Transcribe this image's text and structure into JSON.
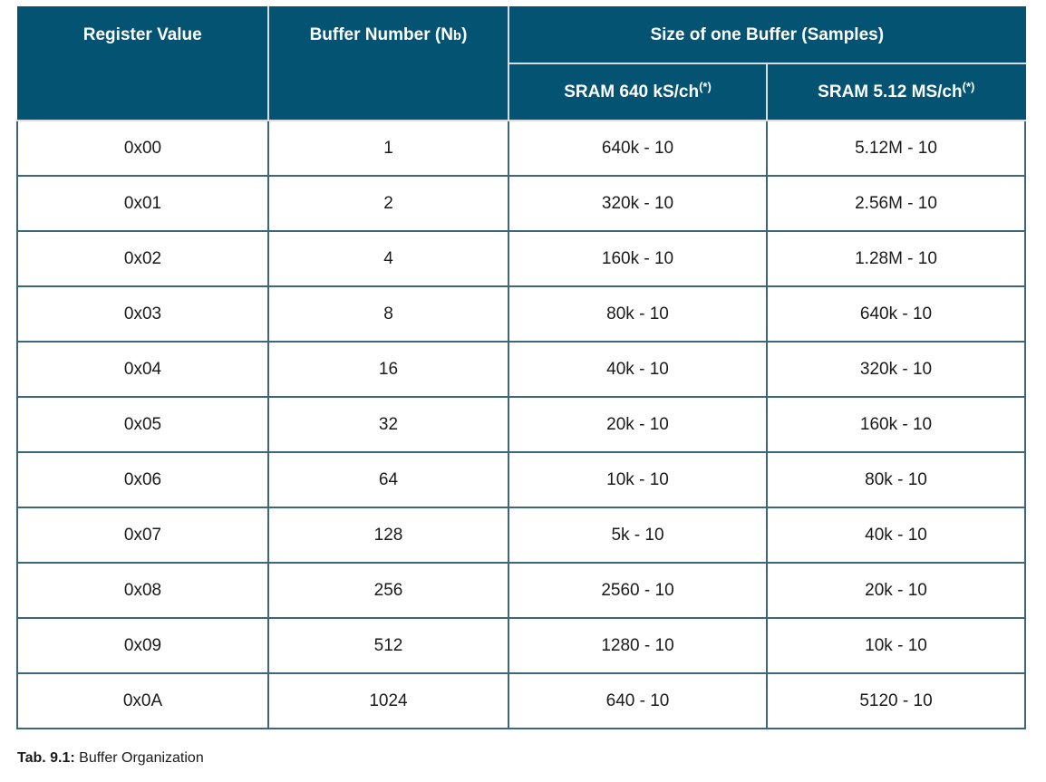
{
  "table": {
    "headers": {
      "register_value": "Register Value",
      "buffer_number_prefix": "Buffer Number (N",
      "buffer_number_sub": "b",
      "buffer_number_suffix": ")",
      "size_group": "Size of one Buffer (Samples)",
      "sram_640": "SRAM 640 kS/ch",
      "sram_512": "SRAM 5.12 MS/ch",
      "note_mark": "(*)"
    },
    "rows": [
      {
        "register": "0x00",
        "buffers": "1",
        "sram_640": "640k - 10",
        "sram_512": "5.12M - 10"
      },
      {
        "register": "0x01",
        "buffers": "2",
        "sram_640": "320k - 10",
        "sram_512": "2.56M - 10"
      },
      {
        "register": "0x02",
        "buffers": "4",
        "sram_640": "160k - 10",
        "sram_512": "1.28M - 10"
      },
      {
        "register": "0x03",
        "buffers": "8",
        "sram_640": "80k - 10",
        "sram_512": "640k - 10"
      },
      {
        "register": "0x04",
        "buffers": "16",
        "sram_640": "40k - 10",
        "sram_512": "320k - 10"
      },
      {
        "register": "0x05",
        "buffers": "32",
        "sram_640": "20k - 10",
        "sram_512": "160k - 10"
      },
      {
        "register": "0x06",
        "buffers": "64",
        "sram_640": "10k - 10",
        "sram_512": "80k - 10"
      },
      {
        "register": "0x07",
        "buffers": "128",
        "sram_640": "5k - 10",
        "sram_512": "40k - 10"
      },
      {
        "register": "0x08",
        "buffers": "256",
        "sram_640": "2560 - 10",
        "sram_512": "20k - 10"
      },
      {
        "register": "0x09",
        "buffers": "512",
        "sram_640": "1280 - 10",
        "sram_512": "10k - 10"
      },
      {
        "register": "0x0A",
        "buffers": "1024",
        "sram_640": "640 - 10",
        "sram_512": "5120 - 10"
      }
    ]
  },
  "caption": {
    "label": "Tab. 9.1:",
    "text": " Buffer Organization"
  },
  "colors": {
    "header_bg": "#045373",
    "header_text": "#ffffff",
    "cell_border": "#3d6678"
  }
}
